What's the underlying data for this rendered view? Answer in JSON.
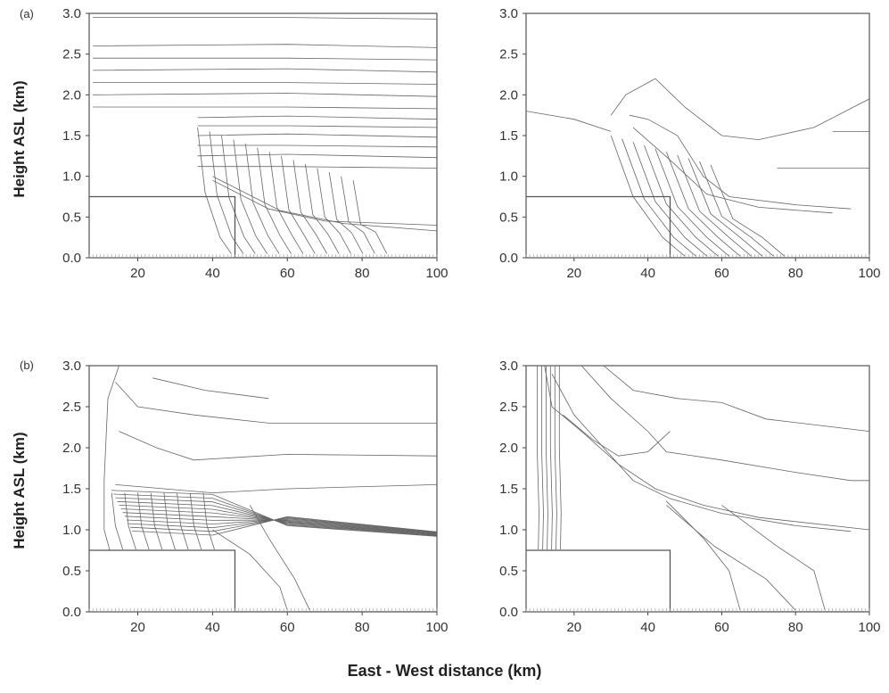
{
  "figure": {
    "xlabel": "East - West distance (km)",
    "ylabel": "Height ASL (km)",
    "panel_labels": [
      "(a)",
      "(b)"
    ]
  },
  "chart_data": [
    {
      "type": "contour",
      "panel": "(a) left",
      "xlabel": "East - West distance (km)",
      "ylabel": "Height ASL (km)",
      "xlim": [
        7,
        100
      ],
      "ylim": [
        0,
        3
      ],
      "xticks": [
        20,
        40,
        60,
        80,
        100
      ],
      "yticks": [
        0.0,
        0.5,
        1.0,
        1.5,
        2.0,
        2.5,
        3.0
      ],
      "terrain": [
        [
          7,
          0.75
        ],
        [
          46,
          0.75
        ],
        [
          46,
          0
        ],
        [
          100,
          0
        ]
      ]
    },
    {
      "type": "contour",
      "panel": "(a) right",
      "xlabel": "East - West distance (km)",
      "ylabel": "Height ASL (km)",
      "xlim": [
        7,
        100
      ],
      "ylim": [
        0,
        3
      ],
      "xticks": [
        20,
        40,
        60,
        80,
        100
      ],
      "yticks": [
        0.0,
        0.5,
        1.0,
        1.5,
        2.0,
        2.5,
        3.0
      ],
      "terrain": [
        [
          7,
          0.75
        ],
        [
          46,
          0.75
        ],
        [
          46,
          0
        ],
        [
          100,
          0
        ]
      ]
    },
    {
      "type": "contour",
      "panel": "(b) left",
      "xlabel": "East - West distance (km)",
      "ylabel": "Height ASL (km)",
      "xlim": [
        7,
        100
      ],
      "ylim": [
        0,
        3
      ],
      "xticks": [
        20,
        40,
        60,
        80,
        100
      ],
      "yticks": [
        0.0,
        0.5,
        1.0,
        1.5,
        2.0,
        2.5,
        3.0
      ],
      "terrain": [
        [
          7,
          0.75
        ],
        [
          46,
          0.75
        ],
        [
          46,
          0
        ],
        [
          100,
          0
        ]
      ]
    },
    {
      "type": "contour",
      "panel": "(b) right",
      "xlabel": "East - West distance (km)",
      "ylabel": "Height ASL (km)",
      "xlim": [
        7,
        100
      ],
      "ylim": [
        0,
        3
      ],
      "xticks": [
        20,
        40,
        60,
        80,
        100
      ],
      "yticks": [
        0.0,
        0.5,
        1.0,
        1.5,
        2.0,
        2.5,
        3.0
      ],
      "terrain": [
        [
          7,
          0.75
        ],
        [
          46,
          0.75
        ],
        [
          46,
          0
        ],
        [
          100,
          0
        ]
      ]
    }
  ]
}
